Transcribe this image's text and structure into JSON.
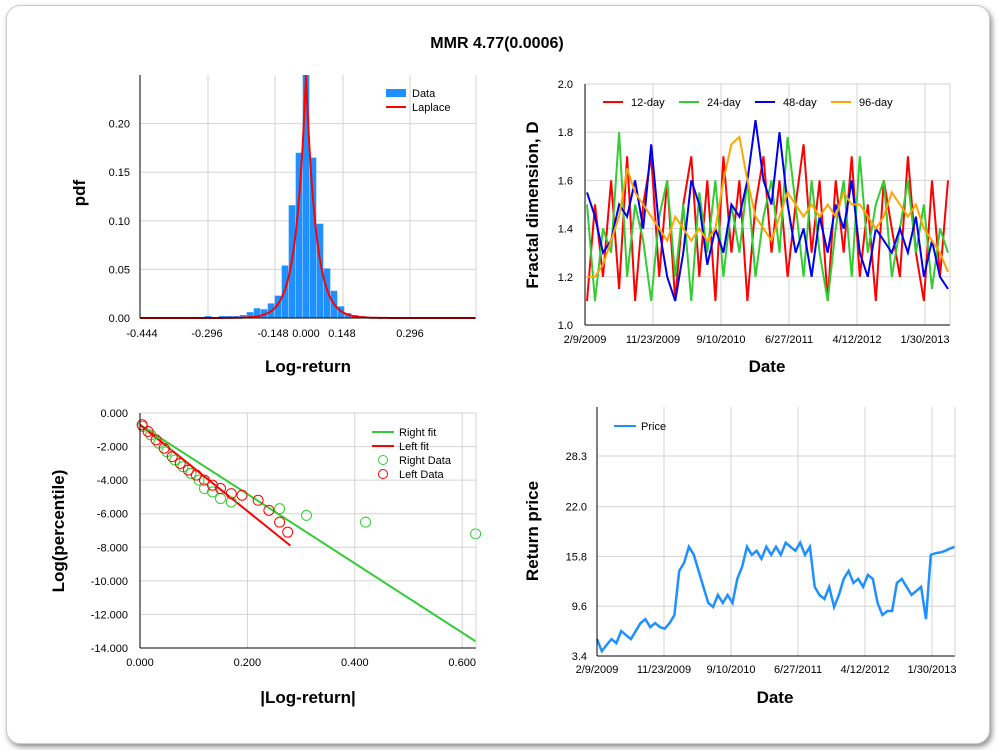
{
  "title": "MMR 4.77(0.0006)",
  "chart_data": [
    {
      "type": "bar",
      "name": "histogram",
      "xlabel": "Log-return",
      "ylabel": "pdf",
      "xticks": [
        "-0.444",
        "-0.296",
        "-0.148",
        "0.000",
        "0.148",
        "0.296"
      ],
      "yticks": [
        "0.00",
        "0.05",
        "0.10",
        "0.15",
        "0.20"
      ],
      "ylim": [
        0,
        0.25
      ],
      "legend": [
        "Data",
        "Laplace"
      ],
      "legend_position": "top-right",
      "bins": [
        -0.3,
        -0.28,
        -0.26,
        -0.24,
        -0.22,
        -0.2,
        -0.18,
        -0.16,
        -0.14,
        -0.12,
        -0.1,
        -0.08,
        -0.06,
        -0.04,
        -0.02,
        0,
        0.02,
        0.04,
        0.06,
        0.08,
        0.1,
        0.12,
        0.14,
        0.16,
        0.18,
        0.2,
        0.22,
        0.24,
        0.26,
        0.28,
        0.3,
        0.32,
        0.34
      ],
      "values": [
        0.001,
        0.002,
        0.001,
        0.002,
        0.002,
        0.002,
        0.003,
        0.006,
        0.01,
        0.009,
        0.015,
        0.023,
        0.054,
        0.116,
        0.17,
        0.25,
        0.165,
        0.097,
        0.051,
        0.028,
        0.012,
        0.005,
        0.003,
        0.002,
        0.001,
        0.001,
        0.001,
        0.001,
        0.001,
        0.001,
        0.001,
        0.001,
        0.001
      ],
      "laplace": {
        "peak": 0.25,
        "scale": 0.028
      },
      "colors": {
        "bars": "#1e90ff",
        "fit": "#ff0000"
      }
    },
    {
      "type": "line",
      "name": "fractal",
      "xlabel": "Date",
      "ylabel": "Fractal dimension, D",
      "xticks": [
        "2/9/2009",
        "11/23/2009",
        "9/10/2010",
        "6/27/2011",
        "4/12/2012",
        "1/30/2013"
      ],
      "yticks": [
        "1.0",
        "1.2",
        "1.4",
        "1.6",
        "1.8",
        "2.0"
      ],
      "ylim": [
        1.0,
        2.0
      ],
      "legend_position": "top",
      "series": [
        {
          "name": "12-day",
          "color": "#ff0000",
          "values": [
            1.1,
            1.5,
            1.2,
            1.6,
            1.15,
            1.7,
            1.1,
            1.5,
            1.7,
            1.2,
            1.6,
            1.1,
            1.5,
            1.7,
            1.2,
            1.6,
            1.1,
            1.7,
            1.3,
            1.6,
            1.1,
            1.5,
            1.7,
            1.3,
            1.6,
            1.2,
            1.5,
            1.75,
            1.3,
            1.6,
            1.1,
            1.6,
            1.3,
            1.7,
            1.2,
            1.5,
            1.1,
            1.6,
            1.4,
            1.2,
            1.7,
            1.3,
            1.1,
            1.6,
            1.2,
            1.6
          ]
        },
        {
          "name": "24-day",
          "color": "#33cc33",
          "values": [
            1.5,
            1.1,
            1.4,
            1.3,
            1.8,
            1.2,
            1.5,
            1.35,
            1.1,
            1.45,
            1.6,
            1.2,
            1.5,
            1.1,
            1.55,
            1.3,
            1.6,
            1.2,
            1.5,
            1.3,
            1.6,
            1.2,
            1.45,
            1.6,
            1.3,
            1.78,
            1.5,
            1.2,
            1.6,
            1.3,
            1.1,
            1.4,
            1.6,
            1.2,
            1.7,
            1.3,
            1.5,
            1.6,
            1.2,
            1.4,
            1.6,
            1.3,
            1.5,
            1.15,
            1.4,
            1.3
          ]
        },
        {
          "name": "48-day",
          "color": "#0000ee",
          "values": [
            1.55,
            1.45,
            1.3,
            1.35,
            1.5,
            1.45,
            1.6,
            1.4,
            1.75,
            1.4,
            1.2,
            1.1,
            1.3,
            1.6,
            1.5,
            1.25,
            1.4,
            1.3,
            1.5,
            1.45,
            1.6,
            1.85,
            1.6,
            1.5,
            1.8,
            1.5,
            1.3,
            1.4,
            1.2,
            1.45,
            1.3,
            1.5,
            1.4,
            1.6,
            1.3,
            1.2,
            1.4,
            1.35,
            1.3,
            1.4,
            1.3,
            1.45,
            1.2,
            1.35,
            1.2,
            1.15
          ]
        },
        {
          "name": "96-day",
          "color": "#ffa500",
          "values": [
            1.2,
            1.2,
            1.25,
            1.35,
            1.45,
            1.65,
            1.55,
            1.5,
            1.45,
            1.4,
            1.35,
            1.45,
            1.4,
            1.35,
            1.4,
            1.35,
            1.4,
            1.6,
            1.75,
            1.78,
            1.6,
            1.45,
            1.4,
            1.35,
            1.45,
            1.55,
            1.5,
            1.45,
            1.5,
            1.45,
            1.5,
            1.45,
            1.55,
            1.5,
            1.5,
            1.45,
            1.4,
            1.45,
            1.55,
            1.5,
            1.45,
            1.5,
            1.4,
            1.35,
            1.3,
            1.22
          ]
        }
      ]
    },
    {
      "type": "scatter",
      "name": "tail",
      "xlabel": "|Log-return|",
      "ylabel": "Log(percentile)",
      "xticks": [
        "0.000",
        "0.200",
        "0.400",
        "0.600"
      ],
      "xlim": [
        0,
        0.6
      ],
      "yticks": [
        "0.000",
        "-2.000",
        "-4.000",
        "-6.000",
        "-8.000",
        "-10.000",
        "-12.000",
        "-14.000"
      ],
      "ylim": [
        -14,
        0
      ],
      "legend": [
        "Right fit",
        "Left fit",
        "Right Data",
        "Left Data"
      ],
      "legend_position": "top-right",
      "right_fit": [
        [
          0,
          -0.7
        ],
        [
          0.625,
          -13.6
        ]
      ],
      "left_fit": [
        [
          0,
          -0.7
        ],
        [
          0.28,
          -7.9
        ]
      ],
      "right_data": [
        [
          0.005,
          -0.8
        ],
        [
          0.02,
          -1.3
        ],
        [
          0.035,
          -1.8
        ],
        [
          0.05,
          -2.3
        ],
        [
          0.065,
          -2.8
        ],
        [
          0.08,
          -3.2
        ],
        [
          0.095,
          -3.6
        ],
        [
          0.11,
          -4.0
        ],
        [
          0.12,
          -4.5
        ],
        [
          0.135,
          -4.7
        ],
        [
          0.15,
          -5.1
        ],
        [
          0.17,
          -5.3
        ],
        [
          0.26,
          -5.7
        ],
        [
          0.31,
          -6.1
        ],
        [
          0.42,
          -6.5
        ],
        [
          0.625,
          -7.2
        ]
      ],
      "left_data": [
        [
          0.004,
          -0.7
        ],
        [
          0.015,
          -1.1
        ],
        [
          0.03,
          -1.6
        ],
        [
          0.045,
          -2.1
        ],
        [
          0.06,
          -2.6
        ],
        [
          0.075,
          -3.0
        ],
        [
          0.09,
          -3.4
        ],
        [
          0.105,
          -3.7
        ],
        [
          0.12,
          -4.0
        ],
        [
          0.135,
          -4.3
        ],
        [
          0.15,
          -4.5
        ],
        [
          0.17,
          -4.8
        ],
        [
          0.19,
          -4.9
        ],
        [
          0.22,
          -5.2
        ],
        [
          0.24,
          -5.8
        ],
        [
          0.26,
          -6.5
        ],
        [
          0.275,
          -7.1
        ]
      ],
      "colors": {
        "right": "#33cc33",
        "left": "#ff0000"
      }
    },
    {
      "type": "line",
      "name": "price",
      "xlabel": "Date",
      "ylabel": "Return price",
      "xticks": [
        "2/9/2009",
        "11/23/2009",
        "9/10/2010",
        "6/27/2011",
        "4/12/2012",
        "1/30/2013"
      ],
      "yticks": [
        "3.4",
        "9.6",
        "15.8",
        "22.0",
        "28.3"
      ],
      "ylim": [
        3.4,
        34.4
      ],
      "legend": [
        "Price"
      ],
      "legend_position": "top-left",
      "series": [
        {
          "name": "Price",
          "color": "#1e90ff",
          "values": [
            5.5,
            4,
            4.8,
            5.5,
            5,
            6.5,
            6,
            5.5,
            6.5,
            7.5,
            8,
            7,
            7.5,
            7,
            6.8,
            7.5,
            8.5,
            14,
            15,
            17,
            16,
            14,
            12,
            10,
            9.5,
            11,
            10,
            11,
            10,
            13,
            14.5,
            17,
            16,
            16.5,
            15.5,
            17,
            16,
            17,
            16,
            17.5,
            17,
            16.5,
            17.5,
            16,
            17,
            12,
            11,
            10.5,
            12,
            9.5,
            11,
            13,
            14,
            12.5,
            13,
            12,
            13.5,
            13,
            10,
            8.5,
            9,
            9,
            12.5,
            13,
            12,
            11,
            11.5,
            12,
            8,
            16,
            16.2,
            16.3,
            16.5,
            16.8,
            17
          ]
        }
      ]
    }
  ]
}
